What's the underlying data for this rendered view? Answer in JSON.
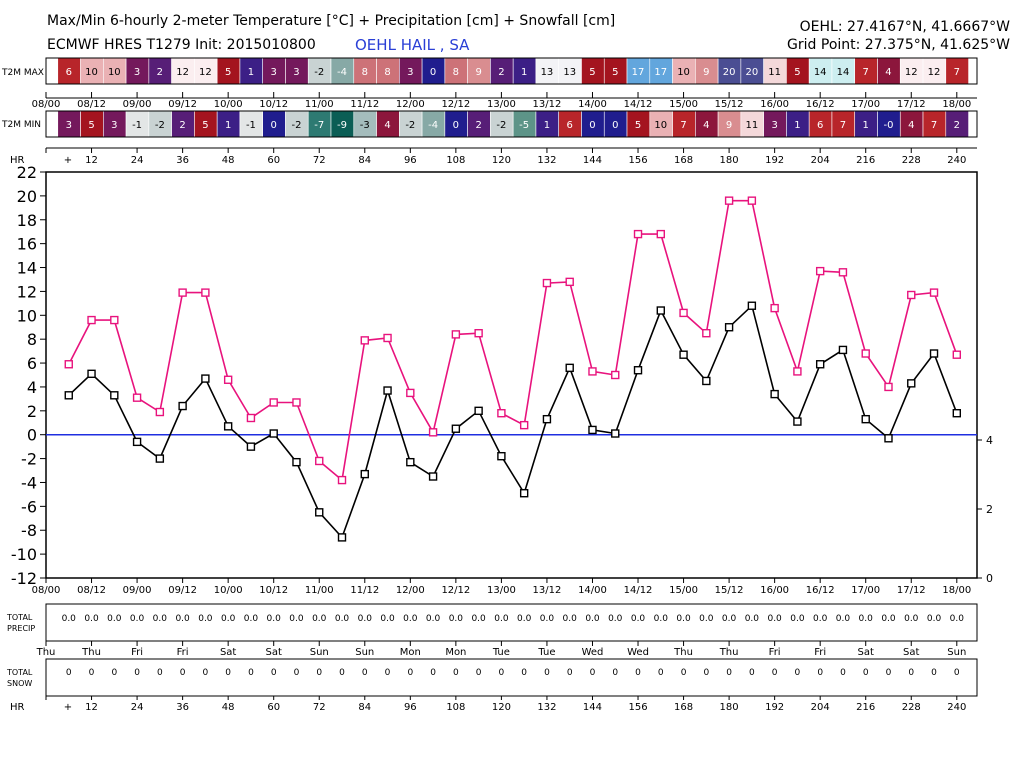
{
  "header": {
    "title": "Max/Min 6-hourly 2-meter Temperature [°C] + Precipitation [cm] + Snowfall [cm]",
    "subtitle": "ECMWF HRES T1279 Init: 2015010800",
    "location": "OEHL HAIL , SA",
    "station_coords": "OEHL: 27.4167°N, 41.6667°W",
    "grid_point": "Grid Point: 27.375°N, 41.625°W"
  },
  "colors": {
    "max_line": "#e8137d",
    "min_line": "#000000",
    "zero_line": "#1f2fe0",
    "header_location": "#2a3fd6"
  },
  "chart_data": {
    "type": "line",
    "title": "Max/Min 6-hourly 2-meter Temperature [°C] + Precipitation [cm] + Snowfall [cm]",
    "x_forecast_hours": [
      6,
      12,
      18,
      24,
      30,
      36,
      42,
      48,
      54,
      60,
      66,
      72,
      78,
      84,
      90,
      96,
      102,
      108,
      114,
      120,
      126,
      132,
      138,
      144,
      150,
      156,
      162,
      168,
      174,
      180,
      186,
      192,
      198,
      204,
      210,
      216,
      222,
      228,
      234,
      240
    ],
    "series": [
      {
        "name": "T2M MAX",
        "values": [
          5.9,
          9.6,
          9.6,
          3.1,
          1.9,
          11.9,
          11.9,
          4.6,
          1.4,
          2.7,
          2.7,
          -2.2,
          -3.8,
          7.9,
          8.1,
          3.5,
          0.2,
          8.4,
          8.5,
          1.8,
          0.8,
          12.7,
          12.8,
          5.3,
          5.0,
          16.8,
          16.8,
          10.2,
          8.5,
          19.6,
          19.6,
          10.6,
          5.3,
          13.7,
          13.6,
          6.8,
          4.0,
          11.7,
          11.9,
          6.7
        ]
      },
      {
        "name": "T2M MIN",
        "values": [
          3.3,
          5.1,
          3.3,
          -0.6,
          -2.0,
          2.4,
          4.7,
          0.7,
          -1.0,
          0.1,
          -2.3,
          -6.5,
          -8.6,
          -3.3,
          3.7,
          -2.3,
          -3.5,
          0.5,
          2.0,
          -1.8,
          -4.9,
          1.3,
          5.6,
          0.4,
          0.1,
          5.4,
          10.4,
          6.7,
          4.5,
          9.0,
          10.8,
          3.4,
          1.1,
          5.9,
          7.1,
          1.3,
          -0.3,
          4.3,
          6.8,
          1.8
        ]
      }
    ],
    "ylim": [
      -12,
      22
    ],
    "y_ticks": [
      "22",
      "20",
      "18",
      "16",
      "14",
      "12",
      "10",
      "8",
      "6",
      "4",
      "2",
      "0",
      "-2",
      "-4",
      "-6",
      "-8",
      "-10",
      "-12"
    ],
    "y2_ticks": [
      "4",
      "2",
      "0"
    ],
    "grid": false,
    "date_labels": [
      "08/00",
      "08/12",
      "09/00",
      "09/12",
      "10/00",
      "10/12",
      "11/00",
      "11/12",
      "12/00",
      "12/12",
      "13/00",
      "13/12",
      "14/00",
      "14/12",
      "15/00",
      "15/12",
      "16/00",
      "16/12",
      "17/00",
      "17/12",
      "18/00"
    ],
    "hour_labels": [
      "+",
      "12",
      "24",
      "36",
      "48",
      "60",
      "72",
      "84",
      "96",
      "108",
      "120",
      "132",
      "144",
      "156",
      "168",
      "180",
      "192",
      "204",
      "216",
      "228",
      "240"
    ],
    "day_labels": [
      "Thu",
      "Thu",
      "Fri",
      "Fri",
      "Sat",
      "Sat",
      "Sun",
      "Sun",
      "Mon",
      "Mon",
      "Tue",
      "Tue",
      "Wed",
      "Wed",
      "Thu",
      "Thu",
      "Fri",
      "Fri",
      "Sat",
      "Sat",
      "Sun"
    ],
    "max_row_label": "T2M MAX",
    "min_row_label": "T2M MIN",
    "hr_label": "HR",
    "max_row": [
      "6",
      "10",
      "10",
      "3",
      "2",
      "12",
      "12",
      "5",
      "1",
      "3",
      "3",
      "-2",
      "-4",
      "8",
      "8",
      "3",
      "0",
      "8",
      "9",
      "2",
      "1",
      "13",
      "13",
      "5",
      "5",
      "17",
      "17",
      "10",
      "9",
      "20",
      "20",
      "11",
      "5",
      "14",
      "14",
      "7",
      "4",
      "12",
      "12",
      "7"
    ],
    "min_row": [
      "3",
      "5",
      "3",
      "-1",
      "-2",
      "2",
      "5",
      "1",
      "-1",
      "0",
      "-2",
      "-7",
      "-9",
      "-3",
      "4",
      "-2",
      "-4",
      "0",
      "2",
      "-2",
      "-5",
      "1",
      "6",
      "0",
      "0",
      "5",
      "10",
      "7",
      "4",
      "9",
      "11",
      "3",
      "1",
      "6",
      "7",
      "1",
      "-0",
      "4",
      "7",
      "2"
    ],
    "precip_label_1": "TOTAL",
    "precip_label_2": "PRECIP",
    "precip_values": [
      "0.0",
      "0.0",
      "0.0",
      "0.0",
      "0.0",
      "0.0",
      "0.0",
      "0.0",
      "0.0",
      "0.0",
      "0.0",
      "0.0",
      "0.0",
      "0.0",
      "0.0",
      "0.0",
      "0.0",
      "0.0",
      "0.0",
      "0.0",
      "0.0",
      "0.0",
      "0.0",
      "0.0",
      "0.0",
      "0.0",
      "0.0",
      "0.0",
      "0.0",
      "0.0",
      "0.0",
      "0.0",
      "0.0",
      "0.0",
      "0.0",
      "0.0",
      "0.0",
      "0.0",
      "0.0",
      "0.0"
    ],
    "snow_label_1": "TOTAL",
    "snow_label_2": "SNOW",
    "snow_values": [
      "0",
      "0",
      "0",
      "0",
      "0",
      "0",
      "0",
      "0",
      "0",
      "0",
      "0",
      "0",
      "0",
      "0",
      "0",
      "0",
      "0",
      "0",
      "0",
      "0",
      "0",
      "0",
      "0",
      "0",
      "0",
      "0",
      "0",
      "0",
      "0",
      "0",
      "0",
      "0",
      "0",
      "0",
      "0",
      "0",
      "0",
      "0",
      "0",
      "0"
    ]
  }
}
